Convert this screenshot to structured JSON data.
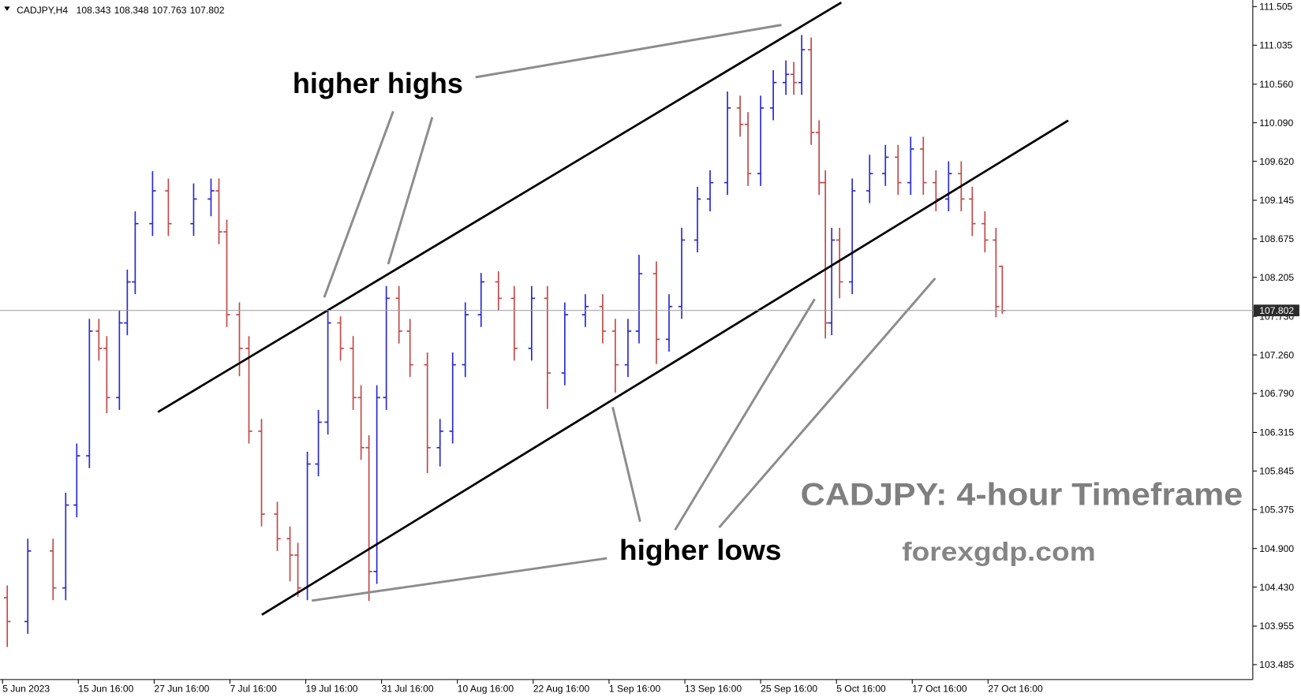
{
  "chart_data": {
    "type": "ohlc",
    "title": "CADJPY: 4-hour Timeframe",
    "subtitle": "forexgdp.com",
    "symbol": "CADJPY,H4",
    "header_values": [
      108.343,
      108.348,
      107.763,
      107.802
    ],
    "annotations": [
      "higher highs",
      "higher lows"
    ],
    "x": [
      3,
      16,
      32,
      40,
      47,
      55,
      61,
      66,
      74,
      79,
      84,
      95,
      105,
      121,
      132,
      137,
      142,
      150,
      156,
      164,
      174,
      182,
      187,
      193,
      200,
      206,
      214,
      222,
      227,
      232,
      237,
      243,
      251,
      258,
      269,
      277,
      285,
      293,
      303,
      314,
      324,
      335,
      345,
      356,
      369,
      380,
      388,
      396,
      403,
      414,
      422,
      430,
      440,
      448,
      459,
      467,
      472,
      480,
      488,
      496,
      501,
      506,
      512,
      517,
      521,
      525,
      530,
      538,
      549,
      559,
      567,
      575,
      583,
      591,
      599,
      607,
      614,
      622,
      629,
      633
    ],
    "open": [
      104.3,
      104.01,
      104.87,
      104.42,
      105.43,
      106.03,
      107.55,
      107.34,
      106.74,
      107.65,
      108.15,
      108.86,
      109.26,
      108.86,
      109.16,
      109.26,
      108.76,
      107.75,
      107.34,
      106.33,
      105.32,
      105.02,
      104.82,
      104.42,
      105.93,
      106.44,
      107.65,
      107.34,
      106.74,
      106.13,
      104.62,
      106.74,
      107.95,
      107.55,
      107.14,
      106.13,
      106.33,
      107.14,
      107.75,
      108.15,
      107.95,
      107.34,
      107.95,
      107.04,
      107.75,
      107.85,
      107.55,
      107.14,
      107.55,
      108.25,
      107.45,
      107.85,
      108.66,
      109.16,
      109.36,
      110.27,
      110.07,
      109.47,
      110.27,
      110.58,
      110.68,
      110.58,
      110.98,
      109.97,
      109.36,
      107.65,
      108.66,
      108.15,
      109.26,
      109.47,
      109.67,
      109.36,
      109.77,
      109.36,
      109.16,
      109.47,
      109.16,
      108.86,
      108.66,
      108.34
    ],
    "high": [
      104.45,
      105.02,
      105.02,
      105.58,
      106.18,
      107.7,
      107.7,
      107.49,
      107.8,
      108.3,
      109.01,
      109.5,
      109.41,
      109.35,
      109.41,
      109.41,
      108.91,
      107.9,
      107.49,
      106.48,
      105.47,
      105.17,
      104.97,
      106.08,
      106.59,
      107.8,
      107.73,
      107.49,
      106.89,
      106.28,
      106.89,
      108.1,
      108.1,
      107.7,
      107.29,
      106.48,
      107.29,
      107.9,
      108.26,
      108.28,
      108.1,
      108.1,
      108.1,
      107.9,
      108.0,
      108.0,
      107.7,
      107.7,
      108.48,
      108.4,
      108.0,
      108.81,
      109.31,
      109.51,
      110.47,
      110.42,
      110.22,
      110.42,
      110.73,
      110.85,
      110.83,
      111.16,
      111.13,
      110.12,
      109.51,
      108.81,
      108.81,
      109.41,
      109.7,
      109.82,
      109.82,
      109.92,
      109.92,
      109.51,
      109.62,
      109.62,
      109.31,
      109.01,
      108.81,
      108.35
    ],
    "low": [
      103.7,
      103.86,
      104.27,
      104.27,
      105.28,
      105.88,
      107.19,
      106.55,
      106.59,
      107.5,
      108.0,
      108.71,
      108.71,
      108.71,
      108.95,
      108.61,
      107.6,
      107.0,
      106.18,
      105.17,
      104.87,
      104.5,
      104.31,
      104.27,
      105.78,
      106.29,
      107.19,
      106.59,
      105.98,
      104.26,
      104.47,
      106.59,
      107.4,
      106.99,
      105.82,
      105.9,
      106.18,
      106.99,
      107.6,
      107.8,
      107.19,
      107.19,
      106.6,
      106.89,
      107.6,
      107.4,
      106.8,
      106.99,
      107.4,
      107.15,
      107.3,
      107.7,
      108.51,
      109.01,
      109.21,
      109.92,
      109.32,
      109.32,
      110.12,
      110.43,
      110.43,
      110.43,
      109.82,
      109.21,
      107.46,
      107.5,
      107.95,
      108.0,
      109.11,
      109.32,
      109.21,
      109.21,
      109.21,
      109.01,
      109.01,
      109.01,
      108.71,
      108.51,
      107.72,
      107.76
    ],
    "close": [
      104.01,
      104.87,
      104.42,
      105.43,
      106.03,
      107.55,
      107.34,
      106.74,
      107.65,
      108.15,
      108.86,
      109.26,
      108.86,
      109.16,
      109.26,
      108.76,
      107.75,
      107.34,
      106.33,
      105.32,
      105.02,
      104.82,
      104.42,
      105.93,
      106.44,
      107.65,
      107.34,
      106.74,
      106.13,
      104.62,
      106.74,
      107.95,
      107.55,
      107.14,
      106.13,
      106.33,
      107.14,
      107.75,
      108.15,
      107.95,
      107.34,
      107.95,
      107.04,
      107.75,
      107.85,
      107.55,
      107.14,
      107.55,
      108.25,
      107.45,
      107.85,
      108.66,
      109.16,
      109.36,
      110.27,
      110.07,
      109.47,
      110.27,
      110.58,
      110.68,
      110.58,
      110.98,
      109.97,
      109.36,
      107.65,
      108.66,
      108.15,
      109.26,
      109.47,
      109.67,
      109.36,
      109.77,
      109.36,
      109.16,
      109.47,
      109.16,
      108.86,
      108.66,
      107.85,
      107.8
    ],
    "up_color": "#2a2ad0",
    "down_color": "#c04a4a",
    "current_price": 107.802,
    "xlim": [
      -1.6,
      791.6
    ],
    "ylim": [
      103.303,
      111.586
    ],
    "xticks": [
      {
        "value": 0,
        "label": "5 Jun 2023"
      },
      {
        "value": 48,
        "label": "15 Jun 16:00"
      },
      {
        "value": 96,
        "label": "27 Jun 16:00"
      },
      {
        "value": 144,
        "label": "7 Jul 16:00"
      },
      {
        "value": 192,
        "label": "19 Jul 16:00"
      },
      {
        "value": 240,
        "label": "31 Jul 16:00"
      },
      {
        "value": 288,
        "label": "10 Aug 16:00"
      },
      {
        "value": 336,
        "label": "22 Aug 16:00"
      },
      {
        "value": 384,
        "label": "1 Sep 16:00"
      },
      {
        "value": 432,
        "label": "13 Sep 16:00"
      },
      {
        "value": 480,
        "label": "25 Sep 16:00"
      },
      {
        "value": 528,
        "label": "5 Oct 16:00"
      },
      {
        "value": 576,
        "label": "17 Oct 16:00"
      },
      {
        "value": 624,
        "label": "27 Oct 16:00"
      }
    ],
    "yticks": [
      111.505,
      111.035,
      {
        "value": 110.56,
        "label": "110.560"
      },
      {
        "value": 110.09,
        "label": "110.090"
      },
      {
        "value": 109.62,
        "label": "109.620"
      },
      109.145,
      108.675,
      108.205,
      {
        "value": 107.73,
        "label": "107.730"
      },
      {
        "value": 107.26,
        "label": "107.260"
      },
      {
        "value": 106.79,
        "label": "106.790"
      },
      106.315,
      105.845,
      105.375,
      {
        "value": 104.9,
        "label": "104.900"
      },
      {
        "value": 104.43,
        "label": "104.430"
      },
      103.955,
      103.485
    ],
    "grid": false
  }
}
